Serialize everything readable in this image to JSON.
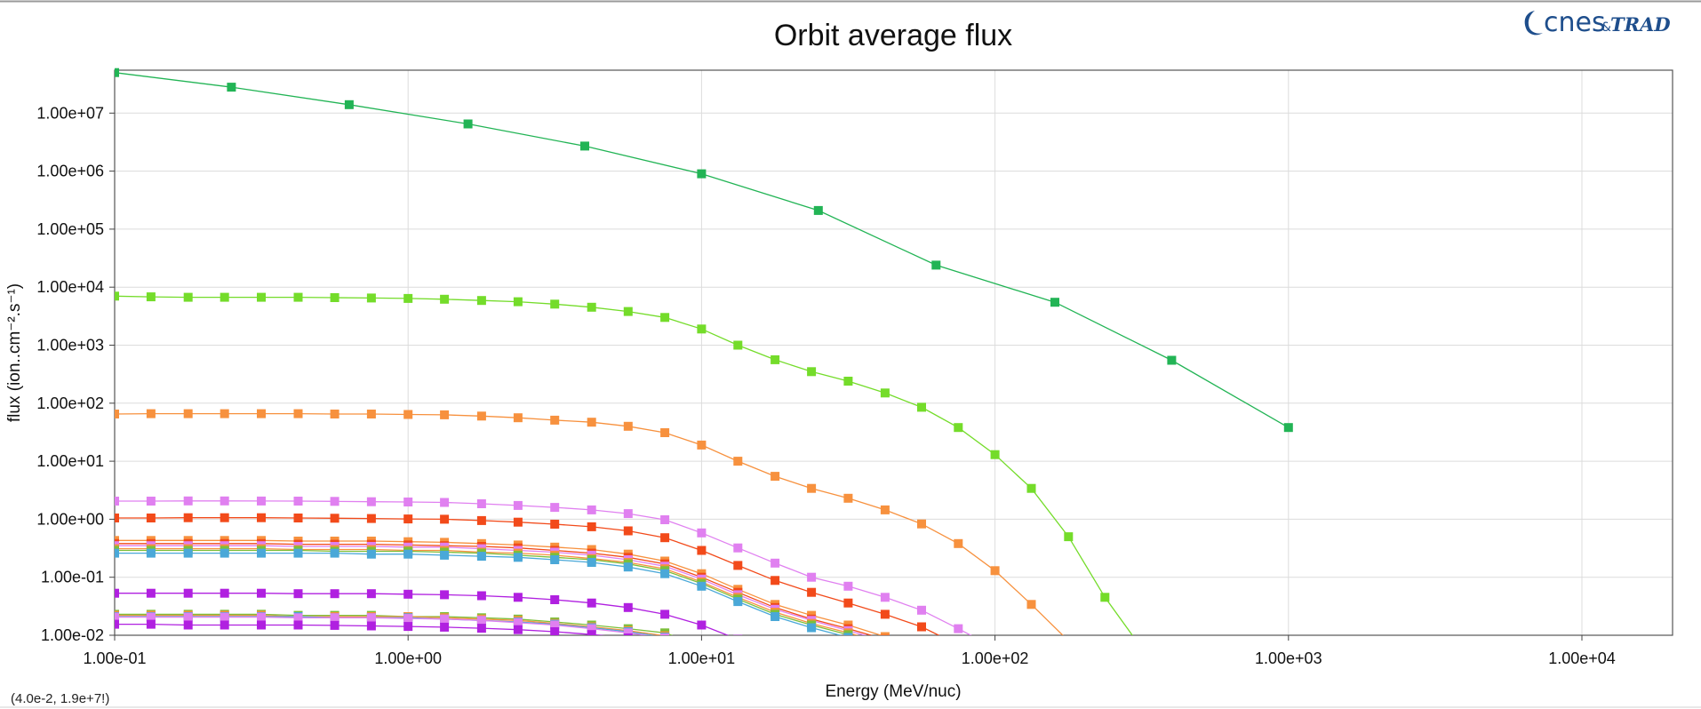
{
  "logo": {
    "brand": "cnes",
    "amp": "&",
    "partner": "TRAD",
    "color": "#1e4e8c"
  },
  "coord_readout": "(4.0e-2, 1.9e+7!)",
  "chart_data": {
    "type": "line",
    "title": "Orbit average flux",
    "xlabel": "Energy (MeV/nuc)",
    "ylabel": "flux (ion..cm⁻².s⁻¹)",
    "x_scale": "log",
    "y_scale": "log",
    "xlim": [
      0.1,
      20000
    ],
    "ylim": [
      0.01,
      55000000
    ],
    "grid": true,
    "legend": "none",
    "x_ticks": [
      {
        "value": 0.1,
        "label": "1.00e-01"
      },
      {
        "value": 1,
        "label": "1.00e+00"
      },
      {
        "value": 10,
        "label": "1.00e+01"
      },
      {
        "value": 100,
        "label": "1.00e+02"
      },
      {
        "value": 1000,
        "label": "1.00e+03"
      },
      {
        "value": 10000,
        "label": "1.00e+04"
      }
    ],
    "y_ticks": [
      {
        "value": 0.01,
        "label": "1.00e-02"
      },
      {
        "value": 0.1,
        "label": "1.00e-01"
      },
      {
        "value": 1,
        "label": "1.00e+00"
      },
      {
        "value": 10,
        "label": "1.00e+01"
      },
      {
        "value": 100,
        "label": "1.00e+02"
      },
      {
        "value": 1000,
        "label": "1.00e+03"
      },
      {
        "value": 10000,
        "label": "1.00e+04"
      },
      {
        "value": 100000,
        "label": "1.00e+05"
      },
      {
        "value": 1000000,
        "label": "1.00e+06"
      },
      {
        "value": 10000000,
        "label": "1.00e+07"
      }
    ],
    "shared_x": [
      0.1,
      0.133,
      0.178,
      0.237,
      0.316,
      0.422,
      0.562,
      0.75,
      1.0,
      1.33,
      1.78,
      2.37,
      3.16,
      4.22,
      5.62,
      7.5,
      10.0,
      13.3,
      17.8,
      23.7,
      31.6,
      42.2,
      56.2,
      75.0,
      100,
      133,
      178,
      237,
      316
    ],
    "series": [
      {
        "color": "#22b455",
        "x": [
          0.1,
          0.25,
          0.63,
          1.6,
          4.0,
          10.0,
          25.0,
          63.0,
          160,
          400,
          1000
        ],
        "values": [
          50000000,
          28000000,
          14000000,
          6500000,
          2700000,
          900000,
          210000,
          24000,
          5500,
          550,
          38
        ]
      },
      {
        "color": "#74dc2a",
        "values": [
          7000,
          6800,
          6700,
          6700,
          6700,
          6700,
          6600,
          6500,
          6400,
          6200,
          5900,
          5600,
          5100,
          4500,
          3800,
          3000,
          1900,
          1000,
          560,
          350,
          240,
          150,
          85,
          38,
          13,
          3.4,
          0.5,
          0.045,
          0.006
        ]
      },
      {
        "color": "#f7913e",
        "values": [
          65,
          66,
          66,
          66,
          66,
          66,
          65,
          65,
          64,
          63,
          60,
          56,
          51,
          47,
          40,
          31,
          19,
          10,
          5.5,
          3.4,
          2.3,
          1.45,
          0.83,
          0.38,
          0.13,
          0.034,
          0.008
        ]
      },
      {
        "color": "#e080f0",
        "values": [
          2.05,
          2.05,
          2.07,
          2.07,
          2.06,
          2.05,
          2.03,
          2.0,
          1.98,
          1.95,
          1.85,
          1.73,
          1.6,
          1.45,
          1.25,
          0.98,
          0.58,
          0.32,
          0.175,
          0.1,
          0.07,
          0.045,
          0.027,
          0.013,
          0.006
        ]
      },
      {
        "color": "#f24a1a",
        "values": [
          1.05,
          1.05,
          1.06,
          1.06,
          1.06,
          1.05,
          1.04,
          1.03,
          1.01,
          1.0,
          0.95,
          0.89,
          0.82,
          0.74,
          0.63,
          0.48,
          0.29,
          0.16,
          0.088,
          0.055,
          0.036,
          0.023,
          0.014,
          0.0068
        ]
      },
      {
        "color": "#f7913e",
        "values": [
          0.43,
          0.43,
          0.43,
          0.43,
          0.43,
          0.42,
          0.42,
          0.42,
          0.41,
          0.4,
          0.38,
          0.36,
          0.33,
          0.3,
          0.25,
          0.19,
          0.115,
          0.062,
          0.034,
          0.022,
          0.015,
          0.0095
        ]
      },
      {
        "color": "#f24a1a",
        "values": [
          0.38,
          0.38,
          0.38,
          0.38,
          0.38,
          0.37,
          0.37,
          0.37,
          0.36,
          0.35,
          0.34,
          0.32,
          0.29,
          0.26,
          0.22,
          0.17,
          0.1,
          0.055,
          0.03,
          0.019,
          0.013,
          0.0085
        ]
      },
      {
        "color": "#e080f0",
        "values": [
          0.35,
          0.35,
          0.35,
          0.35,
          0.35,
          0.34,
          0.34,
          0.34,
          0.33,
          0.33,
          0.31,
          0.29,
          0.27,
          0.24,
          0.2,
          0.155,
          0.093,
          0.05,
          0.028,
          0.018,
          0.012,
          0.008
        ]
      },
      {
        "color": "#f7913e",
        "values": [
          0.31,
          0.31,
          0.31,
          0.31,
          0.31,
          0.3,
          0.3,
          0.3,
          0.29,
          0.29,
          0.27,
          0.26,
          0.24,
          0.21,
          0.18,
          0.14,
          0.083,
          0.045,
          0.025,
          0.016,
          0.011,
          0.0072
        ]
      },
      {
        "color": "#7cbf3a",
        "values": [
          0.29,
          0.29,
          0.29,
          0.29,
          0.29,
          0.29,
          0.28,
          0.28,
          0.28,
          0.27,
          0.26,
          0.24,
          0.22,
          0.2,
          0.17,
          0.13,
          0.078,
          0.042,
          0.023,
          0.015,
          0.0102,
          0.0068
        ]
      },
      {
        "color": "#4aa8d8",
        "values": [
          0.26,
          0.26,
          0.26,
          0.26,
          0.26,
          0.26,
          0.26,
          0.25,
          0.25,
          0.24,
          0.23,
          0.22,
          0.2,
          0.18,
          0.15,
          0.115,
          0.07,
          0.038,
          0.021,
          0.0135,
          0.0092,
          0.0062
        ]
      },
      {
        "color": "#b020e0",
        "values": [
          0.053,
          0.053,
          0.053,
          0.053,
          0.053,
          0.052,
          0.052,
          0.052,
          0.051,
          0.05,
          0.048,
          0.045,
          0.041,
          0.036,
          0.03,
          0.023,
          0.015,
          0.0085
        ]
      },
      {
        "color": "#7cbf3a",
        "values": [
          0.023,
          0.023,
          0.023,
          0.023,
          0.023,
          0.022,
          0.022,
          0.022,
          0.021,
          0.021,
          0.02,
          0.019,
          0.017,
          0.015,
          0.013,
          0.011,
          0.0065
        ]
      },
      {
        "color": "#f7913e",
        "values": [
          0.022,
          0.022,
          0.022,
          0.022,
          0.022,
          0.021,
          0.021,
          0.021,
          0.021,
          0.02,
          0.019,
          0.018,
          0.016,
          0.014,
          0.012,
          0.0098,
          0.006
        ]
      },
      {
        "color": "#4aa8d8",
        "values": [
          0.021,
          0.021,
          0.021,
          0.021,
          0.021,
          0.021,
          0.02,
          0.02,
          0.02,
          0.019,
          0.018,
          0.017,
          0.0155,
          0.0135,
          0.0115,
          0.0093
        ]
      },
      {
        "color": "#e080f0",
        "values": [
          0.0205,
          0.0205,
          0.0205,
          0.0205,
          0.0205,
          0.02,
          0.02,
          0.02,
          0.0195,
          0.019,
          0.018,
          0.0165,
          0.015,
          0.013,
          0.011,
          0.009
        ]
      },
      {
        "color": "#b020e0",
        "values": [
          0.0155,
          0.0155,
          0.015,
          0.015,
          0.015,
          0.015,
          0.0148,
          0.0145,
          0.0142,
          0.0138,
          0.0132,
          0.0125,
          0.0115,
          0.0103,
          0.009
        ]
      }
    ]
  }
}
